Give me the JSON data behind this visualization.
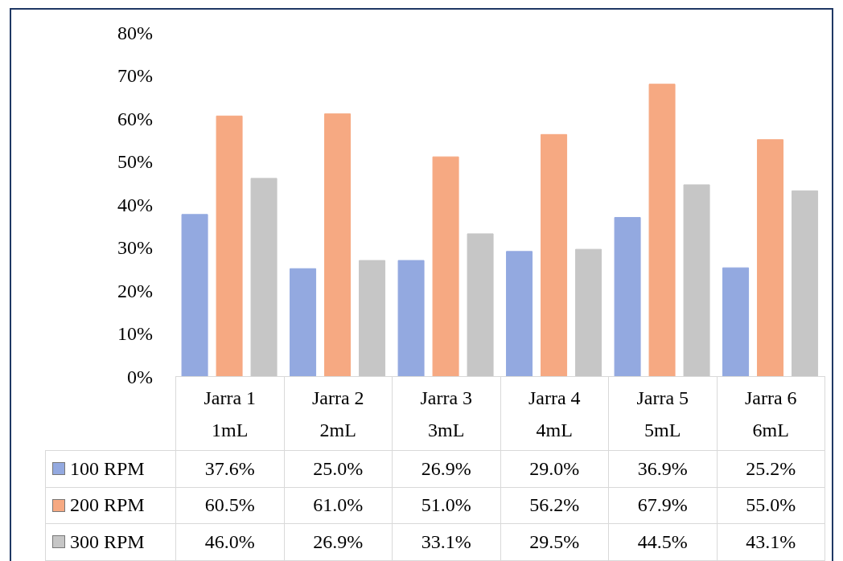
{
  "chart_data": {
    "type": "bar",
    "categories": [
      "Jarra 1\n1mL",
      "Jarra 2\n2mL",
      "Jarra 3\n3mL",
      "Jarra 4\n4mL",
      "Jarra 5\n5mL",
      "Jarra 6\n6mL"
    ],
    "series": [
      {
        "name": "100 RPM",
        "color": "#93a9e0",
        "values": [
          37.6,
          25.0,
          26.9,
          29.0,
          36.9,
          25.2
        ],
        "value_labels": [
          "37.6%",
          "25.0%",
          "26.9%",
          "29.0%",
          "36.9%",
          "25.2%"
        ]
      },
      {
        "name": "200 RPM",
        "color": "#f6a982",
        "values": [
          60.5,
          61.0,
          51.0,
          56.2,
          67.9,
          55.0
        ],
        "value_labels": [
          "60.5%",
          "61.0%",
          "51.0%",
          "56.2%",
          "67.9%",
          "55.0%"
        ]
      },
      {
        "name": "300 RPM",
        "color": "#c6c6c6",
        "values": [
          46.0,
          26.9,
          33.1,
          29.5,
          44.5,
          43.1
        ],
        "value_labels": [
          "46.0%",
          "26.9%",
          "33.1%",
          "29.5%",
          "44.5%",
          "43.1%"
        ]
      }
    ],
    "ylim": [
      0,
      80
    ],
    "yticks": [
      {
        "value": 0,
        "label": "0%"
      },
      {
        "value": 10,
        "label": "10%"
      },
      {
        "value": 20,
        "label": "20%"
      },
      {
        "value": 30,
        "label": "30%"
      },
      {
        "value": 40,
        "label": "40%"
      },
      {
        "value": 50,
        "label": "50%"
      },
      {
        "value": 60,
        "label": "60%"
      },
      {
        "value": 70,
        "label": "70%"
      },
      {
        "value": 80,
        "label": "80%"
      }
    ],
    "grid": false,
    "legend": "bottom left"
  }
}
